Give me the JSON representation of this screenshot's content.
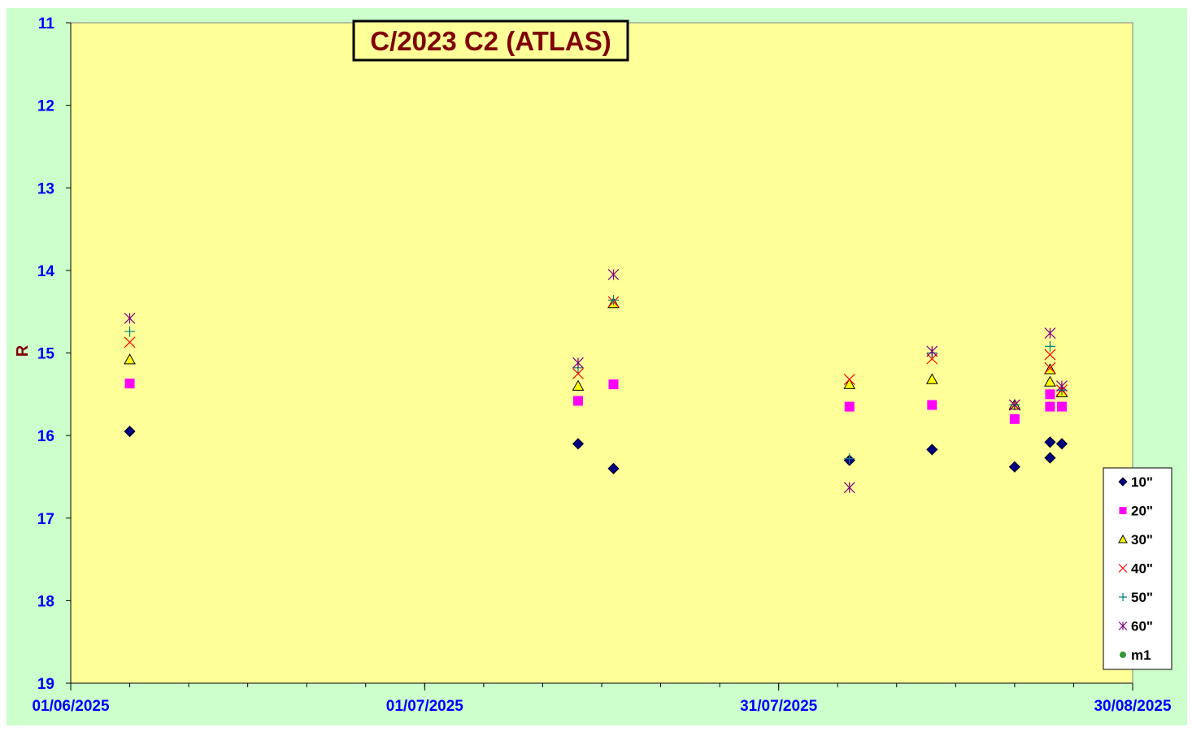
{
  "colors": {
    "chart_background": "#ccffcc",
    "plot_background": "#ffff99",
    "axis_text": "#0000ff",
    "title_text": "#800000",
    "ylabel_text": "#800000"
  },
  "chart_data": {
    "type": "scatter",
    "title": "C/2023 C2 (ATLAS)",
    "xlabel": "",
    "ylabel": "R",
    "x_axis": {
      "type": "date",
      "range": [
        "2025-06-01",
        "2025-08-30"
      ],
      "tick_labels": [
        "01/06/2025",
        "01/07/2025",
        "31/07/2025",
        "30/08/2025"
      ],
      "tick_values": [
        "2025-06-01",
        "2025-07-01",
        "2025-07-31",
        "2025-08-30"
      ],
      "minor_tick_step_days": 5
    },
    "y_axis": {
      "range": [
        11,
        19
      ],
      "reversed": true,
      "tick_labels": [
        "11",
        "12",
        "13",
        "14",
        "15",
        "16",
        "17",
        "18",
        "19"
      ],
      "tick_values": [
        11,
        12,
        13,
        14,
        15,
        16,
        17,
        18,
        19
      ]
    },
    "grid": false,
    "legend_position": "right",
    "series": [
      {
        "name": "10\"",
        "marker": "diamond",
        "color": "#000080",
        "points": [
          {
            "x": "2025-06-06",
            "y": 15.95
          },
          {
            "x": "2025-07-14",
            "y": 16.1
          },
          {
            "x": "2025-07-17",
            "y": 16.4
          },
          {
            "x": "2025-08-06",
            "y": 16.3
          },
          {
            "x": "2025-08-13",
            "y": 16.17
          },
          {
            "x": "2025-08-20",
            "y": 16.38
          },
          {
            "x": "2025-08-23",
            "y": 16.27
          },
          {
            "x": "2025-08-23",
            "y": 16.08
          },
          {
            "x": "2025-08-24",
            "y": 16.1
          }
        ]
      },
      {
        "name": "20\"",
        "marker": "square",
        "color": "#ff00ff",
        "points": [
          {
            "x": "2025-06-06",
            "y": 15.37
          },
          {
            "x": "2025-07-14",
            "y": 15.58
          },
          {
            "x": "2025-07-17",
            "y": 15.38
          },
          {
            "x": "2025-08-06",
            "y": 15.65
          },
          {
            "x": "2025-08-13",
            "y": 15.63
          },
          {
            "x": "2025-08-20",
            "y": 15.8
          },
          {
            "x": "2025-08-23",
            "y": 15.5
          },
          {
            "x": "2025-08-23",
            "y": 15.65
          },
          {
            "x": "2025-08-24",
            "y": 15.65
          }
        ]
      },
      {
        "name": "30\"",
        "marker": "triangle",
        "color": "#ffff00",
        "points": [
          {
            "x": "2025-06-06",
            "y": 15.08
          },
          {
            "x": "2025-07-14",
            "y": 15.4
          },
          {
            "x": "2025-07-17",
            "y": 14.4
          },
          {
            "x": "2025-08-06",
            "y": 15.38
          },
          {
            "x": "2025-08-13",
            "y": 15.32
          },
          {
            "x": "2025-08-20",
            "y": 15.63
          },
          {
            "x": "2025-08-23",
            "y": 15.35
          },
          {
            "x": "2025-08-23",
            "y": 15.2
          },
          {
            "x": "2025-08-24",
            "y": 15.48
          }
        ]
      },
      {
        "name": "40\"",
        "marker": "x",
        "color": "#ff0000",
        "points": [
          {
            "x": "2025-06-06",
            "y": 14.87
          },
          {
            "x": "2025-07-14",
            "y": 15.25
          },
          {
            "x": "2025-07-17",
            "y": 14.38
          },
          {
            "x": "2025-08-06",
            "y": 15.32
          },
          {
            "x": "2025-08-13",
            "y": 15.07
          },
          {
            "x": "2025-08-20",
            "y": 15.63
          },
          {
            "x": "2025-08-23",
            "y": 15.18
          },
          {
            "x": "2025-08-23",
            "y": 15.02
          },
          {
            "x": "2025-08-24",
            "y": 15.45
          }
        ]
      },
      {
        "name": "50\"",
        "marker": "plus",
        "color": "#008080",
        "points": [
          {
            "x": "2025-06-06",
            "y": 14.74
          },
          {
            "x": "2025-07-14",
            "y": 15.18
          },
          {
            "x": "2025-07-17",
            "y": 14.36
          },
          {
            "x": "2025-08-06",
            "y": 16.28
          },
          {
            "x": "2025-08-13",
            "y": 15.0
          },
          {
            "x": "2025-08-20",
            "y": 15.63
          },
          {
            "x": "2025-08-23",
            "y": 14.92
          },
          {
            "x": "2025-08-24",
            "y": 15.45
          }
        ]
      },
      {
        "name": "60\"",
        "marker": "star",
        "color": "#800080",
        "points": [
          {
            "x": "2025-06-06",
            "y": 14.58
          },
          {
            "x": "2025-07-14",
            "y": 15.12
          },
          {
            "x": "2025-07-17",
            "y": 14.05
          },
          {
            "x": "2025-08-06",
            "y": 16.63
          },
          {
            "x": "2025-08-13",
            "y": 14.98
          },
          {
            "x": "2025-08-20",
            "y": 15.63
          },
          {
            "x": "2025-08-23",
            "y": 14.76
          },
          {
            "x": "2025-08-24",
            "y": 15.4
          }
        ]
      },
      {
        "name": "m1",
        "marker": "circle",
        "color": "#339933",
        "points": []
      }
    ]
  }
}
